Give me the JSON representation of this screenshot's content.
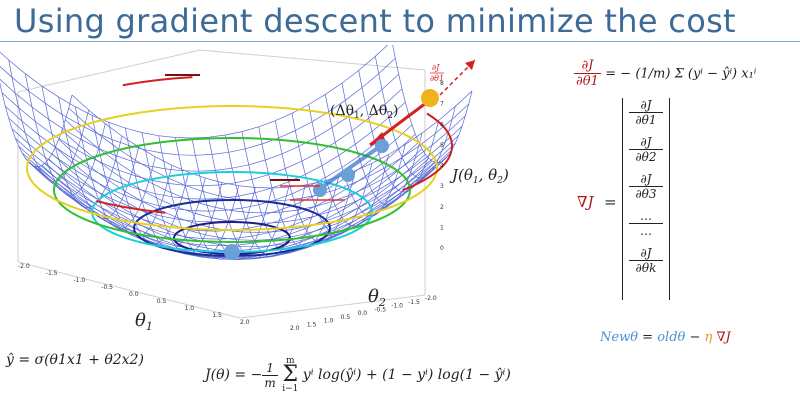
{
  "title": "Using gradient descent to minimize the cost",
  "plot": {
    "x_axis_label": "θ1",
    "y_axis_label": "θ2",
    "z_axis_label": "J(θ1, θ2)",
    "x_ticks": [
      "-2.0",
      "-1.5",
      "-1.0",
      "-0.5",
      "0.0",
      "0.5",
      "1.0",
      "1.5",
      "2.0"
    ],
    "y_ticks": [
      "-2.0",
      "-1.5",
      "-1.0",
      "-0.5",
      "0.0",
      "0.5",
      "1.0",
      "1.5",
      "2.0"
    ],
    "z_ticks": [
      "0",
      "1",
      "2",
      "3",
      "4",
      "5",
      "6",
      "7",
      "8"
    ],
    "step_label": "(Δθ1, Δθ2)",
    "gradient_label_num": "∂J",
    "gradient_label_den": "∂θ1"
  },
  "equations": {
    "partial_derivative": "∂J/∂θ1 = −(1/m) Σ_{i=1}^{m} (y^i − ŷ^i) x_1^i",
    "partial_lhs_num": "∂J",
    "partial_lhs_den": "∂θ1",
    "partial_rhs": "= − (1/m) Σ (yⁱ − ŷⁱ) x₁ⁱ",
    "gradient_symbol": "∇J",
    "gradient_eq": "=",
    "gradient_components": [
      {
        "num": "∂J",
        "den": "∂θ1"
      },
      {
        "num": "∂J",
        "den": "∂θ2"
      },
      {
        "num": "∂J",
        "den": "∂θ3"
      },
      {
        "num": "…",
        "den": "…"
      },
      {
        "num": "∂J",
        "den": "∂θk"
      }
    ],
    "update_new": "Newθ",
    "update_eq": " = ",
    "update_old": "oldθ",
    "update_minus": " − ",
    "update_eta": "η",
    "update_grad": " ∇J",
    "prediction": "ŷ = σ(θ1x1 + θ2x2)",
    "cost": "J(θ) = −(1/m) Σ yⁱ log(ŷⁱ) + (1 − yⁱ) log(1 − ŷⁱ)",
    "cost_lhs": "J(θ) =",
    "cost_frac_num": "1",
    "cost_frac_den": "m",
    "cost_sum_top": "m",
    "cost_sum_bottom": "i−1",
    "cost_body": "yⁱ log(ŷⁱ) + (1 − yⁱ) log(1 − ŷⁱ)"
  },
  "colors": {
    "title": "#3e6a97",
    "mesh": "#3a4fd0",
    "descent_point": "#6a9fd8",
    "start_point": "#f2b21a",
    "arrow": "#d42020"
  }
}
